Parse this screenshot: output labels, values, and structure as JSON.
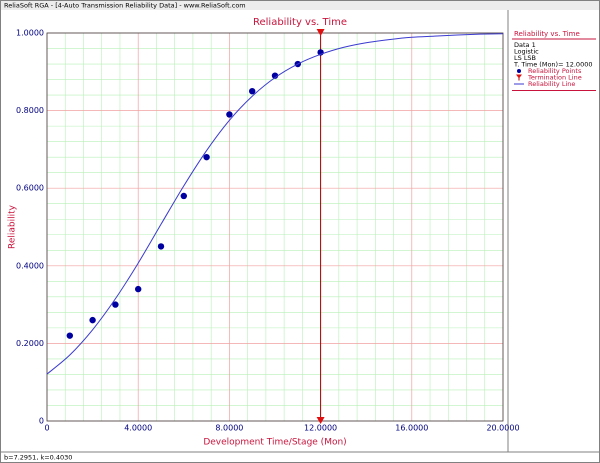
{
  "window_title": "ReliaSoft RGA - [4-Auto Transmission Reliability Data] - www.ReliaSoft.com",
  "status_bar": "b=7.2951, k=0.4030",
  "chart_data": {
    "type": "scatter",
    "title": "Reliability vs. Time",
    "x_label": "Development Time/Stage (Mon)",
    "y_label": "Reliability",
    "xlim": [
      0,
      20
    ],
    "ylim": [
      0,
      1
    ],
    "xticks": [
      0,
      {
        "value": 4,
        "label": "4.0000"
      },
      {
        "value": 8,
        "label": "8.0000"
      },
      {
        "value": 12,
        "label": "12.0000"
      },
      {
        "value": 16,
        "label": "16.0000"
      },
      {
        "value": 20,
        "label": "20.0000"
      }
    ],
    "yticks": [
      0,
      {
        "value": 0.2,
        "label": "0.2000"
      },
      {
        "value": 0.4,
        "label": "0.4000"
      },
      {
        "value": 0.6,
        "label": "0.6000"
      },
      {
        "value": 0.8,
        "label": "0.8000"
      },
      {
        "value": 1,
        "label": "1.0000"
      }
    ],
    "grid": true,
    "series": [
      {
        "name": "Reliability Points",
        "color": "#0000a0",
        "x": [
          1,
          2,
          3,
          4,
          5,
          6,
          7,
          8,
          9,
          10,
          11,
          12
        ],
        "values": [
          0.22,
          0.26,
          0.3,
          0.34,
          0.45,
          0.58,
          0.68,
          0.79,
          0.85,
          0.89,
          0.92,
          0.95
        ]
      },
      {
        "name": "Reliability Line",
        "type": "line",
        "color": "#3a3ad0",
        "x": [
          0,
          1,
          2,
          3,
          4,
          5,
          6,
          7,
          8,
          9,
          10,
          11,
          12,
          13,
          14,
          15,
          16,
          17,
          18,
          19,
          20
        ],
        "values": [
          0.121,
          0.17,
          0.235,
          0.315,
          0.407,
          0.507,
          0.606,
          0.697,
          0.775,
          0.837,
          0.885,
          0.92,
          0.945,
          0.963,
          0.975,
          0.983,
          0.989,
          0.992,
          0.995,
          0.997,
          0.998
        ]
      }
    ],
    "termination": {
      "name": "Termination Line",
      "x": 12,
      "color": "#a80000"
    },
    "legend": {
      "title": "Reliability vs. Time",
      "lines": [
        "Data 1",
        "Logistic",
        "LS LSB",
        "T. Time (Mon)= 12.0000"
      ]
    }
  }
}
